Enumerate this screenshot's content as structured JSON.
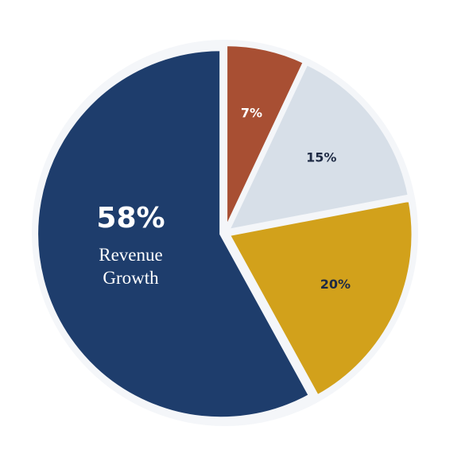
{
  "chart_data": {
    "type": "pie",
    "categories": [
      null,
      null,
      null,
      "Revenue Growth"
    ],
    "values": [
      7,
      15,
      20,
      58
    ],
    "value_labels": [
      "7%",
      "15%",
      "20%",
      "58%"
    ],
    "colors": [
      "#a84f33",
      "#d7dfe8",
      "#d2a11b",
      "#1e3d6c"
    ],
    "label_colors": [
      "#ffffff",
      "#1e2a44",
      "#1e2a44",
      "#ffffff"
    ],
    "start_angle": 0,
    "direction": "clockwise"
  }
}
